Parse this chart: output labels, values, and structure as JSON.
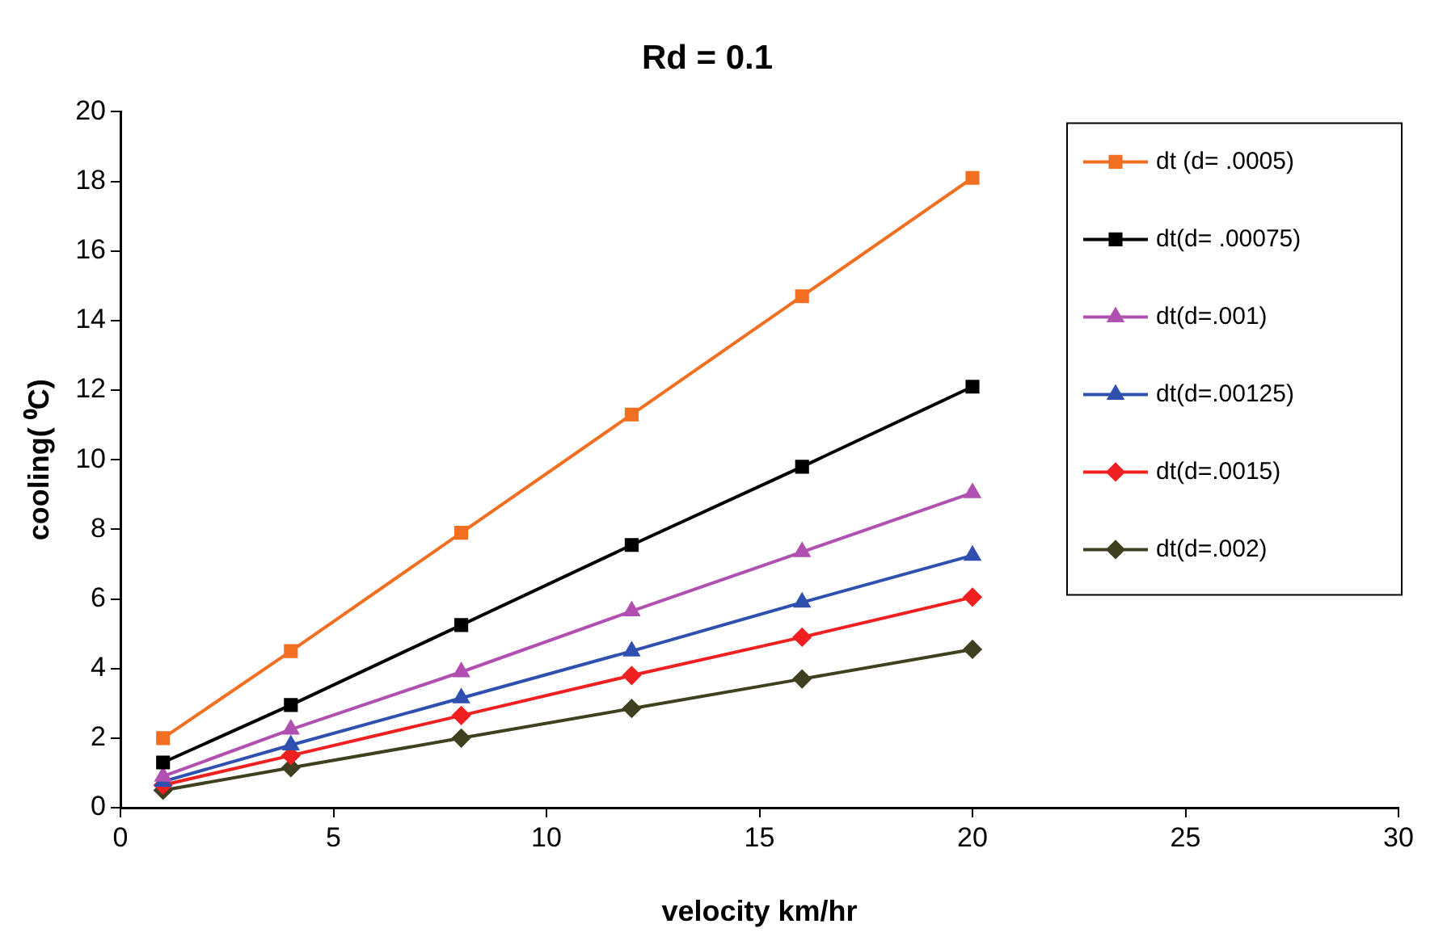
{
  "chart_data": {
    "type": "line",
    "title": "Rd = 0.1",
    "xlabel": "velocity km/hr",
    "ylabel": "cooling( ⁰C)",
    "x": [
      1,
      4,
      8,
      12,
      16,
      20
    ],
    "series": [
      {
        "name": "dt (d= .0005)",
        "color": "#f26f21",
        "marker": "square",
        "values": [
          2.0,
          4.5,
          7.9,
          11.3,
          14.7,
          18.1
        ]
      },
      {
        "name": "dt(d= .00075)",
        "color": "#000000",
        "marker": "square",
        "values": [
          1.3,
          2.95,
          5.25,
          7.55,
          9.8,
          12.1
        ]
      },
      {
        "name": "dt(d=.001)",
        "color": "#b050b0",
        "marker": "triangle",
        "values": [
          0.9,
          2.25,
          3.9,
          5.65,
          7.35,
          9.05
        ]
      },
      {
        "name": "dt(d=.00125)",
        "color": "#3050b0",
        "marker": "triangle",
        "values": [
          0.75,
          1.8,
          3.15,
          4.5,
          5.9,
          7.25
        ]
      },
      {
        "name": "dt(d=.0015)",
        "color": "#f02020",
        "marker": "diamond",
        "values": [
          0.65,
          1.5,
          2.65,
          3.8,
          4.9,
          6.05
        ]
      },
      {
        "name": "dt(d=.002)",
        "color": "#404020",
        "marker": "diamond",
        "values": [
          0.5,
          1.15,
          2.0,
          2.85,
          3.7,
          4.55
        ]
      }
    ],
    "xlim": [
      0,
      30
    ],
    "xticks": [
      0,
      5,
      10,
      15,
      20,
      25,
      30
    ],
    "ylim": [
      0,
      20
    ],
    "yticks": [
      0,
      2,
      4,
      6,
      8,
      10,
      12,
      14,
      16,
      18,
      20
    ],
    "grid": false,
    "legend": "top right",
    "line_style": "solid"
  }
}
